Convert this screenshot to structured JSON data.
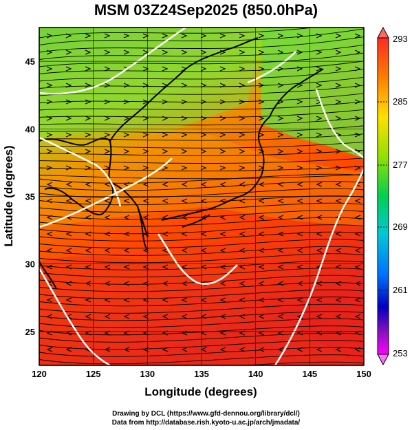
{
  "title": "MSM 03Z24Sep2025 (850.0hPa)",
  "axes": {
    "xlabel": "Longitude (degrees)",
    "ylabel": "Latitude  (degrees)",
    "xticks": [
      "120",
      "125",
      "130",
      "135",
      "140",
      "145",
      "150"
    ],
    "yticks": [
      "25",
      "30",
      "35",
      "40",
      "45"
    ]
  },
  "colorbar": {
    "labels": [
      "293",
      "285",
      "277",
      "269",
      "261",
      "253"
    ],
    "colors": [
      "#ff1a00",
      "#ff8c00",
      "#ffe600",
      "#9be600",
      "#00d94a",
      "#00ccd0",
      "#0080ff",
      "#0000cc",
      "#6a0dad",
      "#ff00ff"
    ]
  },
  "credits": {
    "line1": "Drawing by DCL (https://www.gfd-dennou.org/library/dcl/)",
    "line2": "Data from http://database.rish.kyoto-u.ac.jp/arch/jmadata/"
  },
  "map": {
    "lon_range": [
      120,
      150
    ],
    "lat_range": [
      22.5,
      47.5
    ],
    "field_colors": {
      "north": "#6fd23a",
      "mid": "#c8dc00",
      "south": "#ff5a00",
      "deep_south": "#e61e10"
    }
  }
}
